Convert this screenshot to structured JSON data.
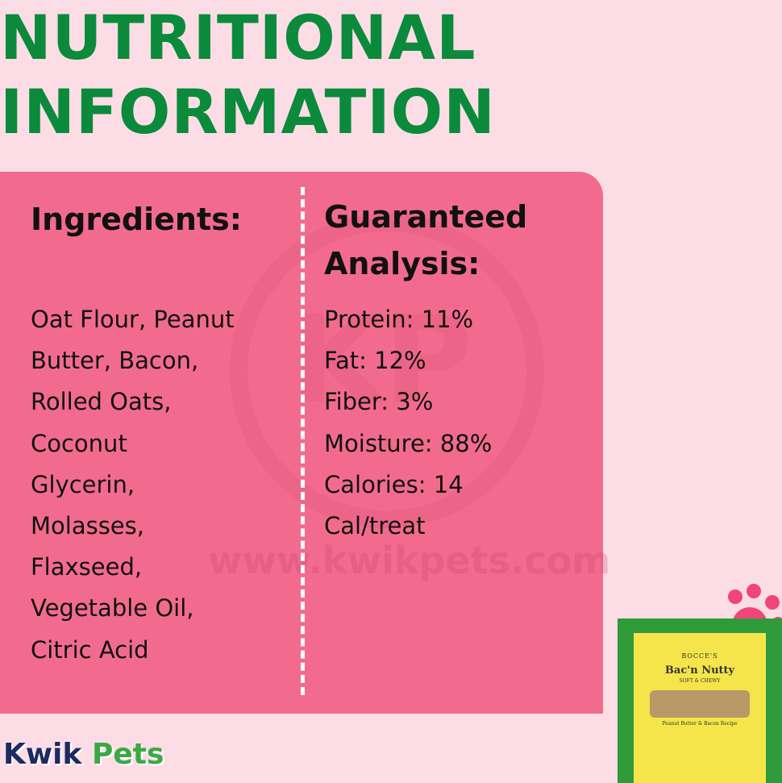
{
  "header": {
    "title_lines": [
      "NUTRITIONAL",
      "INFORMATION"
    ]
  },
  "ingredients": {
    "heading": "Ingredients:",
    "lines": [
      "Oat Flour, Peanut",
      "Butter, Bacon,",
      "Rolled Oats,",
      "Coconut",
      "Glycerin,",
      "Molasses,",
      "Flaxseed,",
      "Vegetable Oil,",
      "Citric Acid"
    ]
  },
  "analysis": {
    "heading_lines": [
      "Guaranteed",
      "Analysis:"
    ],
    "lines": [
      "Protein: 11%",
      "Fat: 12%",
      "Fiber: 3%",
      "Moisture: 88%",
      "Calories: 14",
      "Cal/treat"
    ]
  },
  "watermark": {
    "logo": "KP",
    "url": "www.kwikpets.com"
  },
  "brand": {
    "first": "Kwik",
    "second": "Pets"
  },
  "product": {
    "brand": "BOCCE'S",
    "name": "Bac'n Nutty",
    "subtitle": "SOFT & CHEWY",
    "recipe": "Peanut Butter & Bacon Recipe"
  }
}
